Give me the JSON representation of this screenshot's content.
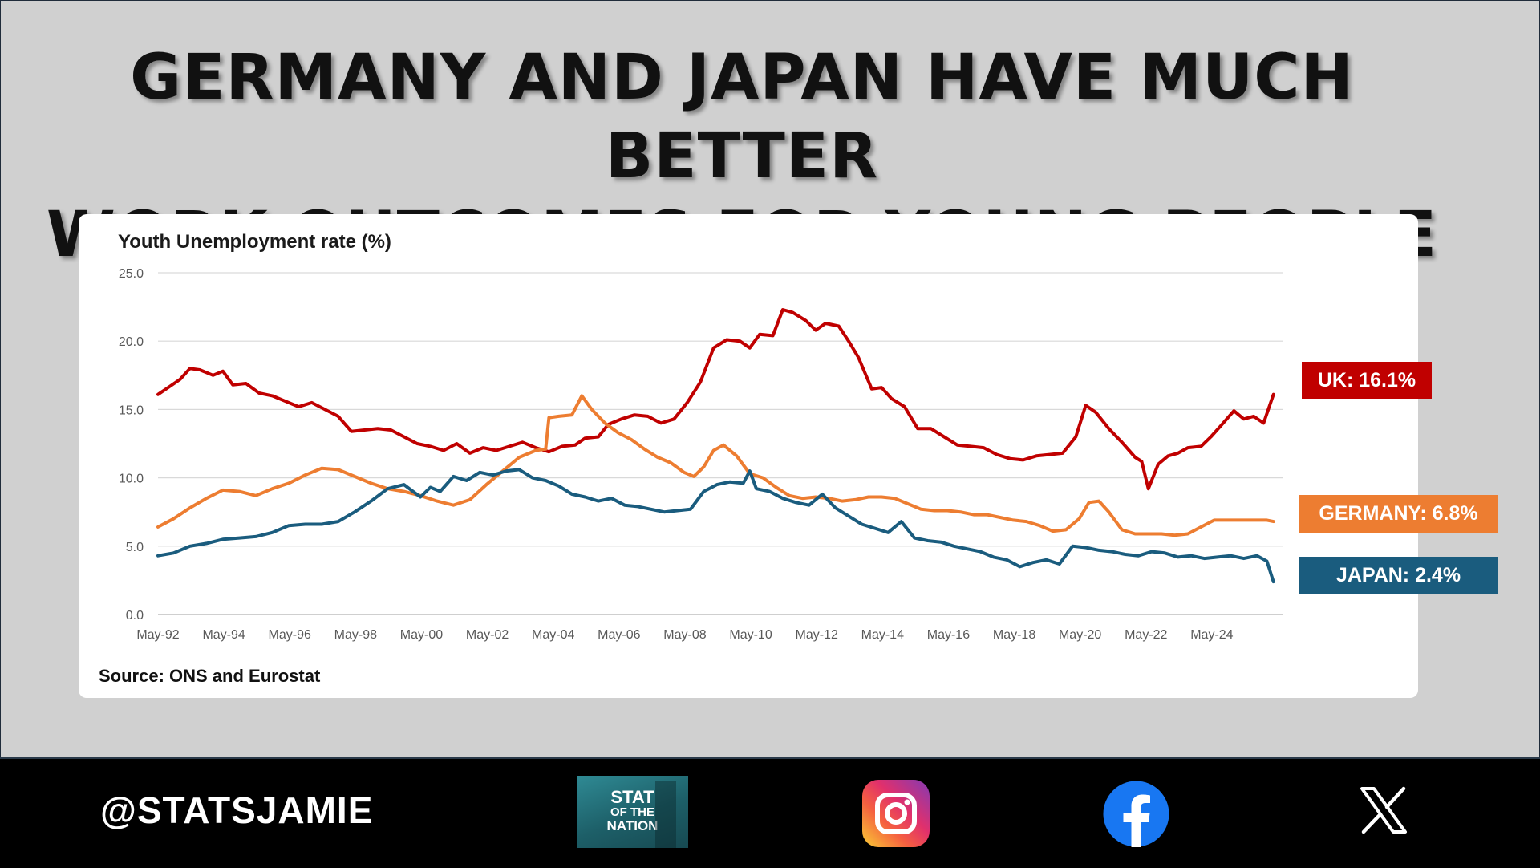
{
  "header": {
    "title_line1": "GERMANY AND JAPAN HAVE MUCH BETTER",
    "title_line2": "WORK OUTCOMES FOR YOUNG PEOPLE"
  },
  "labels": {
    "uk": "UK: 16.1%",
    "germany": "GERMANY: 6.8%",
    "japan": "JAPAN: 2.4%"
  },
  "footer": {
    "handle": "@STATSJAMIE",
    "logo_line1": "STAT",
    "logo_line2": "OF THE",
    "logo_line3": "NATION",
    "icons": [
      "instagram-icon",
      "facebook-icon",
      "x-icon"
    ]
  },
  "colors": {
    "uk": "#c00000",
    "germany": "#ed7d31",
    "japan": "#1a5c7e"
  },
  "chart_data": {
    "type": "line",
    "title": "Youth Unemployment rate (%)",
    "source": "Source: ONS and Eurostat",
    "xlabel": "",
    "ylabel": "",
    "ylim": [
      0,
      25
    ],
    "yticks": [
      "25.0",
      "20.0",
      "15.0",
      "10.0",
      "5.0",
      "0.0"
    ],
    "ytick_values": [
      25,
      20,
      15,
      10,
      5,
      0
    ],
    "grid": true,
    "x_range": [
      1992.33,
      2026.5
    ],
    "x_ticks": [
      {
        "label": "May-92",
        "t": 1992.33
      },
      {
        "label": "May-94",
        "t": 1994.33
      },
      {
        "label": "May-96",
        "t": 1996.33
      },
      {
        "label": "May-98",
        "t": 1998.33
      },
      {
        "label": "May-00",
        "t": 2000.33
      },
      {
        "label": "May-02",
        "t": 2002.33
      },
      {
        "label": "May-04",
        "t": 2004.33
      },
      {
        "label": "May-06",
        "t": 2006.33
      },
      {
        "label": "May-08",
        "t": 2008.33
      },
      {
        "label": "May-10",
        "t": 2010.33
      },
      {
        "label": "May-12",
        "t": 2012.33
      },
      {
        "label": "May-14",
        "t": 2014.33
      },
      {
        "label": "May-16",
        "t": 2016.33
      },
      {
        "label": "May-18",
        "t": 2018.33
      },
      {
        "label": "May-20",
        "t": 2020.33
      },
      {
        "label": "May-22",
        "t": 2022.33
      },
      {
        "label": "May-24",
        "t": 2024.33
      }
    ],
    "series": [
      {
        "name": "UK",
        "color": "#c00000",
        "x": [
          1992.33,
          1992.7,
          1993.0,
          1993.3,
          1993.6,
          1994.0,
          1994.3,
          1994.6,
          1995.0,
          1995.4,
          1995.8,
          1996.2,
          1996.6,
          1997.0,
          1997.4,
          1997.8,
          1998.2,
          1998.6,
          1999.0,
          1999.4,
          1999.8,
          2000.2,
          2000.6,
          2001.0,
          2001.4,
          2001.8,
          2002.2,
          2002.6,
          2003.0,
          2003.4,
          2003.8,
          2004.2,
          2004.6,
          2005.0,
          2005.3,
          2005.7,
          2006.0,
          2006.4,
          2006.8,
          2007.2,
          2007.6,
          2008.0,
          2008.4,
          2008.8,
          2009.2,
          2009.6,
          2010.0,
          2010.3,
          2010.6,
          2011.0,
          2011.3,
          2011.6,
          2012.0,
          2012.3,
          2012.6,
          2013.0,
          2013.3,
          2013.6,
          2014.0,
          2014.3,
          2014.6,
          2015.0,
          2015.4,
          2015.8,
          2016.2,
          2016.6,
          2017.0,
          2017.4,
          2017.8,
          2018.2,
          2018.6,
          2019.0,
          2019.4,
          2019.8,
          2020.2,
          2020.5,
          2020.8,
          2021.2,
          2021.6,
          2022.0,
          2022.2,
          2022.4,
          2022.7,
          2023.0,
          2023.3,
          2023.6,
          2024.0,
          2024.3,
          2024.6,
          2025.0,
          2025.3,
          2025.6,
          2025.9,
          2026.2
        ],
        "values": [
          16.1,
          16.7,
          17.2,
          18.0,
          17.9,
          17.5,
          17.8,
          16.8,
          16.9,
          16.2,
          16.0,
          15.6,
          15.2,
          15.5,
          15.0,
          14.5,
          13.4,
          13.5,
          13.6,
          13.5,
          13.0,
          12.5,
          12.3,
          12.0,
          12.5,
          11.8,
          12.2,
          12.0,
          12.3,
          12.6,
          12.2,
          11.9,
          12.3,
          12.4,
          12.9,
          13.0,
          13.9,
          14.3,
          14.6,
          14.5,
          14.0,
          14.3,
          15.5,
          17.0,
          19.5,
          20.1,
          20.0,
          19.5,
          20.5,
          20.4,
          22.3,
          22.1,
          21.5,
          20.8,
          21.3,
          21.1,
          20.0,
          18.8,
          16.5,
          16.6,
          15.8,
          15.2,
          13.6,
          13.6,
          13.0,
          12.4,
          12.3,
          12.2,
          11.7,
          11.4,
          11.3,
          11.6,
          11.7,
          11.8,
          13.0,
          15.3,
          14.8,
          13.6,
          12.6,
          11.5,
          11.2,
          9.2,
          11.0,
          11.6,
          11.8,
          12.2,
          12.3,
          13.0,
          13.8,
          14.9,
          14.3,
          14.5,
          14.0,
          16.1
        ]
      },
      {
        "name": "GERMANY",
        "color": "#ed7d31",
        "x": [
          1992.33,
          1992.8,
          1993.3,
          1993.8,
          1994.3,
          1994.8,
          1995.3,
          1995.8,
          1996.3,
          1996.8,
          1997.3,
          1997.8,
          1998.3,
          1998.8,
          1999.3,
          1999.8,
          2000.3,
          2000.8,
          2001.3,
          2001.8,
          2002.3,
          2002.8,
          2003.3,
          2003.8,
          2004.1,
          2004.2,
          2004.5,
          2004.9,
          2005.2,
          2005.5,
          2005.9,
          2006.3,
          2006.7,
          2007.1,
          2007.5,
          2007.9,
          2008.3,
          2008.6,
          2008.9,
          2009.2,
          2009.5,
          2009.9,
          2010.3,
          2010.7,
          2011.1,
          2011.5,
          2011.9,
          2012.3,
          2012.7,
          2013.1,
          2013.5,
          2013.9,
          2014.3,
          2014.7,
          2015.1,
          2015.5,
          2015.9,
          2016.3,
          2016.7,
          2017.1,
          2017.5,
          2017.9,
          2018.3,
          2018.7,
          2019.1,
          2019.5,
          2019.9,
          2020.3,
          2020.6,
          2020.9,
          2021.2,
          2021.6,
          2022.0,
          2022.4,
          2022.8,
          2023.2,
          2023.6,
          2024.0,
          2024.4,
          2024.8,
          2025.2,
          2025.6,
          2026.0,
          2026.2
        ],
        "values": [
          6.4,
          7.0,
          7.8,
          8.5,
          9.1,
          9.0,
          8.7,
          9.2,
          9.6,
          10.2,
          10.7,
          10.6,
          10.1,
          9.6,
          9.2,
          9.0,
          8.7,
          8.3,
          8.0,
          8.4,
          9.5,
          10.5,
          11.5,
          12.0,
          12.1,
          14.4,
          14.5,
          14.6,
          16.0,
          15.0,
          14.0,
          13.3,
          12.8,
          12.1,
          11.5,
          11.1,
          10.4,
          10.1,
          10.8,
          12.0,
          12.4,
          11.6,
          10.3,
          10.0,
          9.3,
          8.7,
          8.5,
          8.6,
          8.5,
          8.3,
          8.4,
          8.6,
          8.6,
          8.5,
          8.1,
          7.7,
          7.6,
          7.6,
          7.5,
          7.3,
          7.3,
          7.1,
          6.9,
          6.8,
          6.5,
          6.1,
          6.2,
          7.0,
          8.2,
          8.3,
          7.5,
          6.2,
          5.9,
          5.9,
          5.9,
          5.8,
          5.9,
          6.4,
          6.9,
          6.9,
          6.9,
          6.9,
          6.9,
          6.8
        ]
      },
      {
        "name": "JAPAN",
        "color": "#1a5c7e",
        "x": [
          1992.33,
          1992.8,
          1993.3,
          1993.8,
          1994.3,
          1994.8,
          1995.3,
          1995.8,
          1996.3,
          1996.8,
          1997.3,
          1997.8,
          1998.3,
          1998.8,
          1999.3,
          1999.8,
          2000.3,
          2000.6,
          2000.9,
          2001.3,
          2001.7,
          2002.1,
          2002.5,
          2002.9,
          2003.3,
          2003.7,
          2004.1,
          2004.5,
          2004.9,
          2005.3,
          2005.7,
          2006.1,
          2006.5,
          2006.9,
          2007.3,
          2007.7,
          2008.1,
          2008.5,
          2008.9,
          2009.3,
          2009.7,
          2010.1,
          2010.3,
          2010.5,
          2010.9,
          2011.3,
          2011.7,
          2012.1,
          2012.5,
          2012.9,
          2013.3,
          2013.7,
          2014.1,
          2014.5,
          2014.9,
          2015.3,
          2015.7,
          2016.1,
          2016.5,
          2016.9,
          2017.3,
          2017.7,
          2018.1,
          2018.5,
          2018.9,
          2019.3,
          2019.7,
          2020.1,
          2020.5,
          2020.9,
          2021.3,
          2021.7,
          2022.1,
          2022.5,
          2022.9,
          2023.3,
          2023.7,
          2024.1,
          2024.5,
          2024.9,
          2025.3,
          2025.7,
          2026.0,
          2026.2
        ],
        "values": [
          4.3,
          4.5,
          5.0,
          5.2,
          5.5,
          5.6,
          5.7,
          6.0,
          6.5,
          6.6,
          6.6,
          6.8,
          7.5,
          8.3,
          9.2,
          9.5,
          8.6,
          9.3,
          9.0,
          10.1,
          9.8,
          10.4,
          10.2,
          10.5,
          10.6,
          10.0,
          9.8,
          9.4,
          8.8,
          8.6,
          8.3,
          8.5,
          8.0,
          7.9,
          7.7,
          7.5,
          7.6,
          7.7,
          9.0,
          9.5,
          9.7,
          9.6,
          10.5,
          9.2,
          9.0,
          8.5,
          8.2,
          8.0,
          8.8,
          7.8,
          7.2,
          6.6,
          6.3,
          6.0,
          6.8,
          5.6,
          5.4,
          5.3,
          5.0,
          4.8,
          4.6,
          4.2,
          4.0,
          3.5,
          3.8,
          4.0,
          3.7,
          5.0,
          4.9,
          4.7,
          4.6,
          4.4,
          4.3,
          4.6,
          4.5,
          4.2,
          4.3,
          4.1,
          4.2,
          4.3,
          4.1,
          4.3,
          3.9,
          2.4
        ]
      }
    ]
  }
}
